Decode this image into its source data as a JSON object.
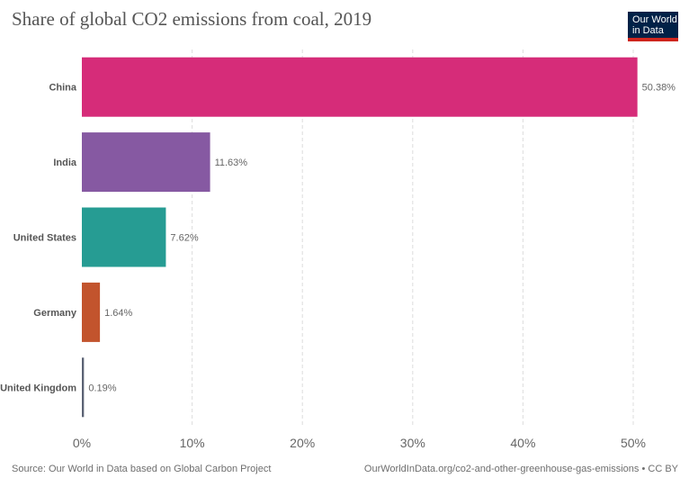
{
  "header": {
    "title": "Share of global CO2 emissions from coal, 2019",
    "logo_line1": "Our World",
    "logo_line2": "in Data"
  },
  "footer": {
    "source": "Source: Our World in Data based on Global Carbon Project",
    "url": "OurWorldInData.org/co2-and-other-greenhouse-gas-emissions • CC BY"
  },
  "chart_data": {
    "type": "bar",
    "orientation": "horizontal",
    "title": "Share of global CO2 emissions from coal, 2019",
    "categories": [
      "China",
      "India",
      "United States",
      "Germany",
      "United Kingdom"
    ],
    "values": [
      50.38,
      11.63,
      7.62,
      1.64,
      0.19
    ],
    "value_labels": [
      "50.38%",
      "11.63%",
      "7.62%",
      "1.64%",
      "0.19%"
    ],
    "colors": [
      "#d62c79",
      "#8659a2",
      "#269c93",
      "#c2542d",
      "#5b6274"
    ],
    "xlim": [
      0,
      50
    ],
    "x_ticks": [
      0,
      10,
      20,
      30,
      40,
      50
    ],
    "x_tick_labels": [
      "0%",
      "10%",
      "20%",
      "30%",
      "40%",
      "50%"
    ],
    "grid": "vertical dashed"
  }
}
